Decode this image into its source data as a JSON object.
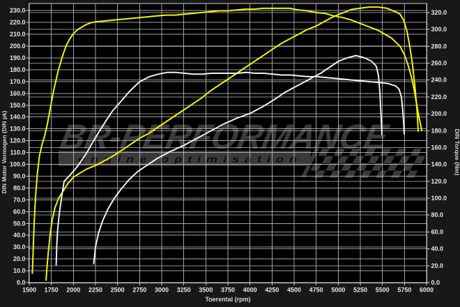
{
  "watermark": {
    "brand": "BR-PERFORMANCE",
    "tagline": "engine optimisation"
  },
  "colors": {
    "outer_bg": "#181818",
    "plot_bg": "#000000",
    "grid": "#bdbdbd",
    "frame": "#cfcfcf",
    "tick_text": "#e6e6e6",
    "axis_title_text": "#d8d8d8",
    "tuned_curve": "#f4f400",
    "stock_curve": "#f0f0f0",
    "watermark_gray": "#3a3a3a",
    "watermark_text_dark": "#0e0e0e"
  },
  "chart_data": {
    "type": "line",
    "title": "",
    "xlabel": "Toerental (rpm)",
    "ylabel_left": "DIN Motor Vermogen (DIN pk)",
    "ylabel_right": "DIN Torque (Nm)",
    "x_range": [
      1500,
      6000
    ],
    "x_tick_step": 250,
    "x_tick_labels": [
      "1500",
      "1750",
      "2000",
      "2250",
      "2500",
      "2750",
      "3000",
      "3250",
      "3500",
      "3750",
      "4000",
      "4250",
      "4500",
      "4750",
      "5000",
      "5250",
      "5500",
      "5750",
      "6000"
    ],
    "left_axis": {
      "range": [
        0,
        230
      ],
      "tick_step": 10,
      "tick_labels": [
        "0.0",
        "10.0",
        "20.0",
        "30.0",
        "40.0",
        "50.0",
        "60.0",
        "70.0",
        "80.0",
        "90.0",
        "100.0",
        "110.0",
        "120.0",
        "130.0",
        "140.0",
        "150.0",
        "160.0",
        "170.0",
        "180.0",
        "190.0",
        "200.0",
        "210.0",
        "220.0",
        "230.0"
      ]
    },
    "right_axis": {
      "range": [
        0,
        320
      ],
      "tick_step": 20,
      "tick_labels": [
        "0.0",
        "20.0",
        "40.0",
        "60.0",
        "80.0",
        "100.0",
        "120.0",
        "140.0",
        "160.0",
        "180.0",
        "200.0",
        "220.0",
        "240.0",
        "260.0",
        "280.0",
        "300.0",
        "320.0"
      ]
    },
    "grid": true,
    "legend": "none",
    "series": [
      {
        "name": "tuned-torque",
        "axis": "right",
        "unit": "Nm",
        "color": "#f4f400",
        "points": [
          [
            1535,
            11
          ],
          [
            1545,
            40
          ],
          [
            1555,
            70
          ],
          [
            1570,
            100
          ],
          [
            1590,
            128
          ],
          [
            1615,
            150
          ],
          [
            1645,
            164
          ],
          [
            1675,
            174
          ],
          [
            1705,
            188
          ],
          [
            1735,
            205
          ],
          [
            1775,
            227
          ],
          [
            1825,
            250
          ],
          [
            1875,
            268
          ],
          [
            1915,
            280
          ],
          [
            1955,
            288
          ],
          [
            2000,
            295
          ],
          [
            2050,
            300
          ],
          [
            2100,
            303
          ],
          [
            2150,
            306
          ],
          [
            2200,
            308
          ],
          [
            2250,
            309
          ],
          [
            2350,
            310
          ],
          [
            2450,
            311
          ],
          [
            2550,
            312
          ],
          [
            2650,
            313
          ],
          [
            2750,
            314
          ],
          [
            2850,
            315
          ],
          [
            2950,
            316
          ],
          [
            3050,
            317
          ],
          [
            3150,
            317
          ],
          [
            3250,
            318
          ],
          [
            3350,
            319
          ],
          [
            3450,
            320
          ],
          [
            3550,
            321
          ],
          [
            3650,
            322
          ],
          [
            3750,
            322
          ],
          [
            3850,
            323
          ],
          [
            3950,
            324
          ],
          [
            4050,
            324
          ],
          [
            4150,
            325
          ],
          [
            4250,
            325
          ],
          [
            4350,
            325
          ],
          [
            4450,
            325
          ],
          [
            4550,
            323
          ],
          [
            4650,
            322
          ],
          [
            4750,
            320
          ],
          [
            4850,
            319
          ],
          [
            4950,
            316
          ],
          [
            5050,
            314
          ],
          [
            5150,
            311
          ],
          [
            5250,
            307
          ],
          [
            5350,
            303
          ],
          [
            5450,
            299
          ],
          [
            5550,
            293
          ],
          [
            5600,
            290
          ],
          [
            5650,
            285
          ],
          [
            5700,
            280
          ],
          [
            5750,
            270
          ],
          [
            5790,
            258
          ],
          [
            5830,
            243
          ],
          [
            5860,
            228
          ],
          [
            5890,
            210
          ],
          [
            5915,
            196
          ],
          [
            5935,
            186
          ],
          [
            5945,
            180
          ]
        ]
      },
      {
        "name": "tuned-power",
        "axis": "left",
        "unit": "pk",
        "color": "#f4f400",
        "points": [
          [
            1690,
            2
          ],
          [
            1700,
            12
          ],
          [
            1715,
            25
          ],
          [
            1735,
            40
          ],
          [
            1760,
            53
          ],
          [
            1790,
            63
          ],
          [
            1830,
            71
          ],
          [
            1880,
            77
          ],
          [
            1940,
            84
          ],
          [
            2000,
            89
          ],
          [
            2060,
            92
          ],
          [
            2150,
            96
          ],
          [
            2250,
            99
          ],
          [
            2350,
            103
          ],
          [
            2450,
            107
          ],
          [
            2550,
            112
          ],
          [
            2650,
            117
          ],
          [
            2750,
            122
          ],
          [
            2850,
            126
          ],
          [
            2950,
            131
          ],
          [
            3050,
            136
          ],
          [
            3150,
            141
          ],
          [
            3250,
            146
          ],
          [
            3350,
            151
          ],
          [
            3450,
            156
          ],
          [
            3550,
            162
          ],
          [
            3650,
            167
          ],
          [
            3750,
            172
          ],
          [
            3850,
            177
          ],
          [
            3950,
            182
          ],
          [
            4050,
            187
          ],
          [
            4150,
            192
          ],
          [
            4250,
            197
          ],
          [
            4350,
            202
          ],
          [
            4450,
            206
          ],
          [
            4550,
            210
          ],
          [
            4650,
            214
          ],
          [
            4750,
            217
          ],
          [
            4850,
            221
          ],
          [
            4950,
            225
          ],
          [
            5050,
            228
          ],
          [
            5150,
            231
          ],
          [
            5250,
            232
          ],
          [
            5350,
            233
          ],
          [
            5450,
            233
          ],
          [
            5550,
            232
          ],
          [
            5650,
            229
          ],
          [
            5700,
            227
          ],
          [
            5740,
            222
          ],
          [
            5780,
            212
          ],
          [
            5810,
            200
          ],
          [
            5840,
            185
          ],
          [
            5870,
            165
          ],
          [
            5895,
            143
          ],
          [
            5905,
            128
          ]
        ]
      },
      {
        "name": "stock-torque",
        "axis": "right",
        "unit": "Nm",
        "color": "#f0f0f0",
        "points": [
          [
            1805,
            21
          ],
          [
            1812,
            45
          ],
          [
            1822,
            64
          ],
          [
            1840,
            82
          ],
          [
            1865,
            100
          ],
          [
            1895,
            120
          ],
          [
            1950,
            126
          ],
          [
            2040,
            137
          ],
          [
            2140,
            152
          ],
          [
            2240,
            170
          ],
          [
            2340,
            187
          ],
          [
            2440,
            203
          ],
          [
            2540,
            215
          ],
          [
            2640,
            227
          ],
          [
            2750,
            238
          ],
          [
            2860,
            244
          ],
          [
            2960,
            247
          ],
          [
            3060,
            249
          ],
          [
            3160,
            249
          ],
          [
            3260,
            248
          ],
          [
            3360,
            247
          ],
          [
            3460,
            247
          ],
          [
            3560,
            248
          ],
          [
            3660,
            248
          ],
          [
            3760,
            248
          ],
          [
            3860,
            248
          ],
          [
            3960,
            249
          ],
          [
            4060,
            248
          ],
          [
            4160,
            248
          ],
          [
            4260,
            247
          ],
          [
            4360,
            246
          ],
          [
            4460,
            246
          ],
          [
            4560,
            245
          ],
          [
            4660,
            244
          ],
          [
            4760,
            244
          ],
          [
            4860,
            243
          ],
          [
            4960,
            242
          ],
          [
            5060,
            241
          ],
          [
            5160,
            240
          ],
          [
            5260,
            239
          ],
          [
            5360,
            238
          ],
          [
            5460,
            237
          ],
          [
            5560,
            236
          ],
          [
            5650,
            233
          ],
          [
            5690,
            229
          ],
          [
            5715,
            220
          ],
          [
            5730,
            205
          ],
          [
            5740,
            190
          ],
          [
            5748,
            176
          ]
        ]
      },
      {
        "name": "stock-power",
        "axis": "left",
        "unit": "pk",
        "color": "#f0f0f0",
        "points": [
          [
            2230,
            16
          ],
          [
            2250,
            30
          ],
          [
            2285,
            42
          ],
          [
            2330,
            52
          ],
          [
            2390,
            62
          ],
          [
            2460,
            71
          ],
          [
            2540,
            79
          ],
          [
            2630,
            87
          ],
          [
            2730,
            94
          ],
          [
            2830,
            99
          ],
          [
            2950,
            105
          ],
          [
            3100,
            111
          ],
          [
            3250,
            116
          ],
          [
            3400,
            122
          ],
          [
            3550,
            128
          ],
          [
            3700,
            134
          ],
          [
            3850,
            139
          ],
          [
            4000,
            143
          ],
          [
            4150,
            149
          ],
          [
            4300,
            156
          ],
          [
            4400,
            161
          ],
          [
            4500,
            165
          ],
          [
            4600,
            169
          ],
          [
            4700,
            173
          ],
          [
            4800,
            177
          ],
          [
            4900,
            182
          ],
          [
            5000,
            187
          ],
          [
            5100,
            190
          ],
          [
            5200,
            192
          ],
          [
            5300,
            190
          ],
          [
            5380,
            187
          ],
          [
            5430,
            183
          ],
          [
            5455,
            175
          ],
          [
            5470,
            162
          ],
          [
            5480,
            148
          ],
          [
            5490,
            133
          ],
          [
            5495,
            125
          ]
        ]
      }
    ]
  }
}
